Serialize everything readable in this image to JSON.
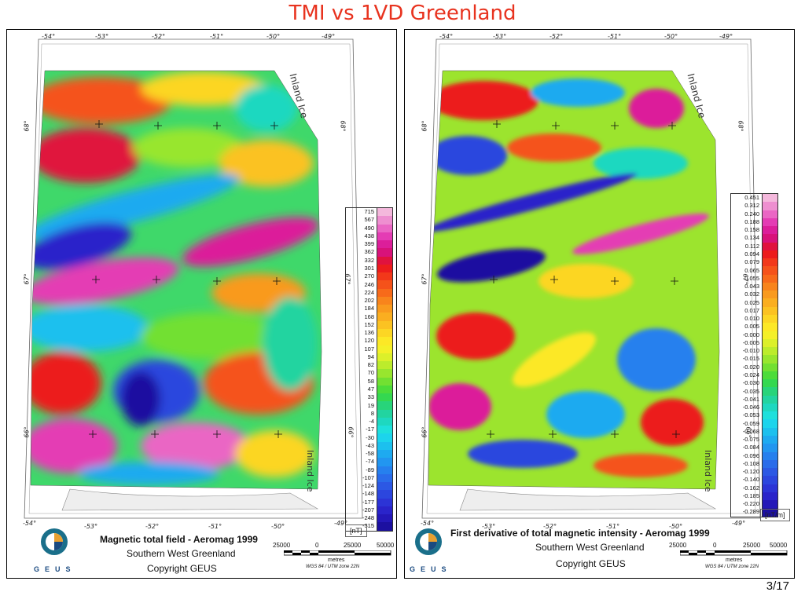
{
  "title": "TMI vs 1VD Greenland",
  "page_number": "3/17",
  "colors": {
    "title": "#e8331f",
    "geus_blue": "#1a4a80"
  },
  "lon_ticks_top": [
    "-54°",
    "-53°",
    "-52°",
    "-51°",
    "-50°",
    "-49°"
  ],
  "lon_ticks_bottom": [
    "-54°",
    "-53°",
    "-52°",
    "-51°",
    "-50°",
    "-49°"
  ],
  "lat_ticks": [
    "68°",
    "67°",
    "66°"
  ],
  "left_panel": {
    "ice_top": "Inland Ice",
    "ice_bottom": "Inland Ice",
    "legend_values": [
      "715",
      "567",
      "490",
      "438",
      "399",
      "362",
      "332",
      "301",
      "270",
      "246",
      "224",
      "202",
      "184",
      "168",
      "152",
      "136",
      "120",
      "107",
      "94",
      "82",
      "70",
      "58",
      "47",
      "33",
      "19",
      "8",
      "-4",
      "-17",
      "-30",
      "-43",
      "-58",
      "-74",
      "-89",
      "-107",
      "-124",
      "-148",
      "-177",
      "-207",
      "-248",
      "-315"
    ],
    "unit": "[nT]",
    "caption_main": "Magnetic total field - Aeromag 1999",
    "caption_sub1": "Southern West Greenland",
    "caption_sub2": "Copyright GEUS",
    "logo_text": "GEUS",
    "scale_labels": [
      "25000",
      "0",
      "25000",
      "50000"
    ],
    "scale_title": "metres",
    "projection": "WGS 84 / UTM zone 22N"
  },
  "right_panel": {
    "ice_top": "Inland Ice",
    "ice_bottom": "Inland Ice",
    "legend_values": [
      "0.451",
      "0.312",
      "0.240",
      "0.188",
      "0.158",
      "0.134",
      "0.112",
      "0.094",
      "0.079",
      "0.065",
      "0.055",
      "0.043",
      "0.032",
      "0.025",
      "0.017",
      "0.010",
      "0.005",
      "-0.000",
      "-0.005",
      "-0.010",
      "-0.015",
      "-0.020",
      "-0.024",
      "-0.030",
      "-0.035",
      "-0.041",
      "-0.046",
      "-0.053",
      "-0.059",
      "-0.068",
      "-0.075",
      "-0.084",
      "-0.096",
      "-0.108",
      "-0.120",
      "-0.140",
      "-0.162",
      "-0.185",
      "-0.220",
      "-0.289"
    ],
    "unit": "[nT/m]",
    "caption_main": "First derivative of total magnetic intensity - Aeromag 1999",
    "caption_sub1": "Southern West Greenland",
    "caption_sub2": "Copyright GEUS",
    "logo_text": "GEUS",
    "scale_labels": [
      "25000",
      "0",
      "25000",
      "50000"
    ],
    "scale_title": "metres",
    "projection": "WGS 84 / UTM zone 22N"
  },
  "legend_colors": [
    "#f4b8dc",
    "#ee8fd0",
    "#ea66c4",
    "#e43cb4",
    "#dc1e9a",
    "#d8127a",
    "#e0123e",
    "#ec1c1c",
    "#f2381a",
    "#f5521a",
    "#f76a1a",
    "#f8841c",
    "#f99a1e",
    "#faae20",
    "#fbc222",
    "#fcd624",
    "#fce826",
    "#f4f028",
    "#dcf02a",
    "#bcec2c",
    "#98e62e",
    "#72e032",
    "#4cdc3a",
    "#34d850",
    "#28d47a",
    "#22d4a0",
    "#1ed8c0",
    "#1ee0dc",
    "#1cd4ec",
    "#1cc0ee",
    "#1eaaf0",
    "#2296f0",
    "#2680ee",
    "#2a6cea",
    "#2c58e4",
    "#2c46de",
    "#2c34d6",
    "#2a24ca",
    "#2418b8",
    "#1c10a0"
  ]
}
